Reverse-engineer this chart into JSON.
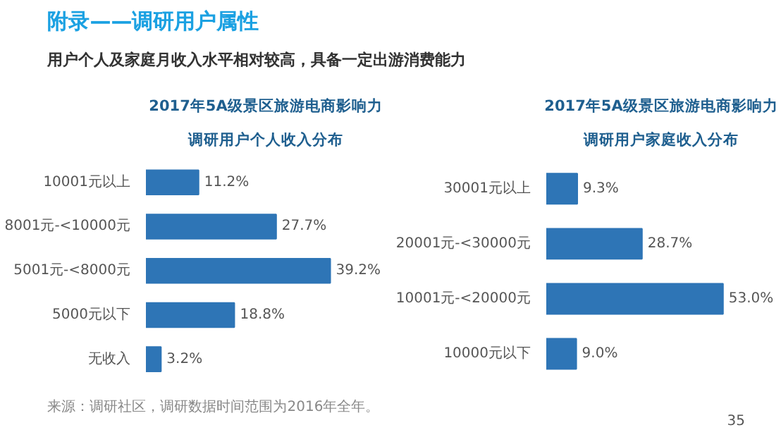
{
  "chart_data": [
    {
      "type": "other",
      "title": "附录——调研用户属性",
      "subtitle": "用户个人及家庭月收入水平相对较高，具备一定出游消费能力"
    },
    {
      "type": "bar",
      "orientation": "horizontal",
      "title": "2017年5A级景区旅游电商影响力",
      "subtitle": "调研用户个人收入分布",
      "categories": [
        "10001元以上",
        "8001元-<10000元",
        "5001元-<8000元",
        "5000元以下",
        "无收入"
      ],
      "values": [
        11.2,
        27.7,
        39.2,
        18.8,
        3.2
      ],
      "value_labels": [
        "11.2%",
        "27.7%",
        "39.2%",
        "18.8%",
        "3.2%"
      ],
      "color": "#2e75b6"
    },
    {
      "type": "bar",
      "orientation": "horizontal",
      "title": "2017年5A级景区旅游电商影响力",
      "subtitle": "调研用户家庭收入分布",
      "categories": [
        "30001元以上",
        "20001元-<30000元",
        "10001元-<20000元",
        "10000元以下"
      ],
      "values": [
        9.3,
        28.7,
        53.0,
        9.0
      ],
      "value_labels": [
        "9.3%",
        "28.7%",
        "53.0%",
        "9.0%"
      ],
      "color": "#2e75b6"
    },
    {
      "type": "other",
      "annotations": [
        "来源：调研社区，调研数据时间范围为2016年全年。",
        "35"
      ]
    }
  ]
}
